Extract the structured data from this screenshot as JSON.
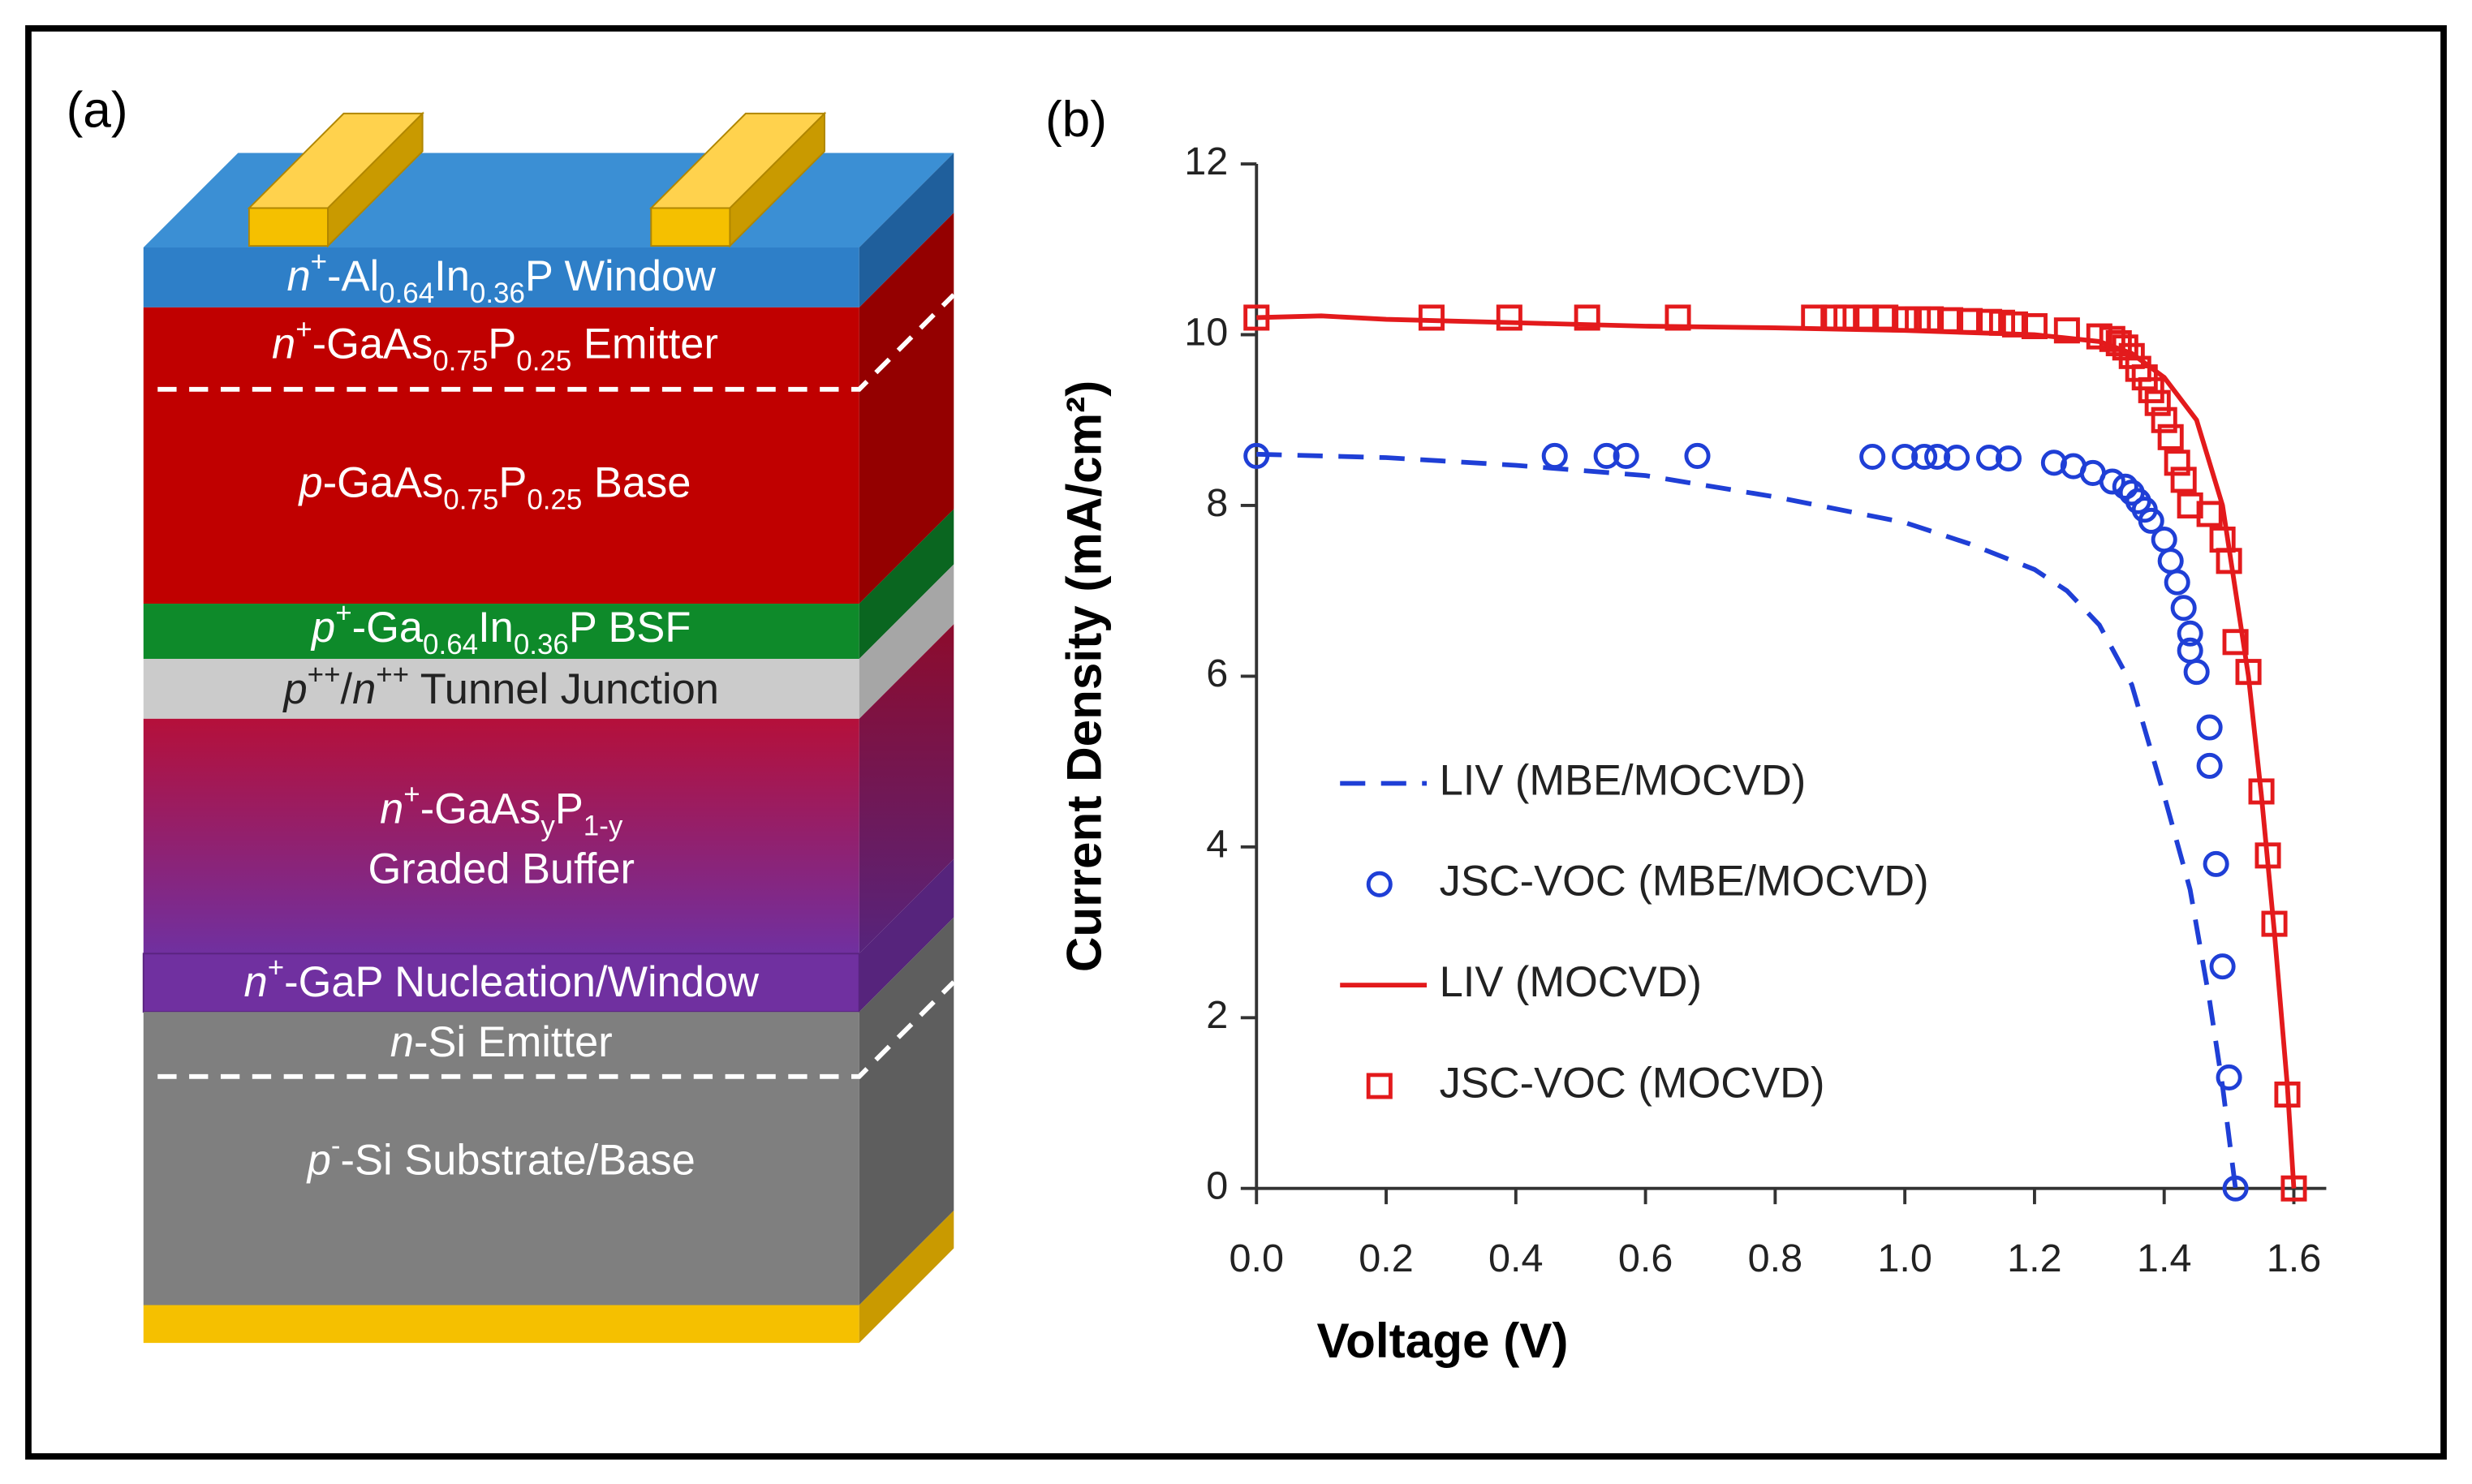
{
  "diagram": {
    "panel_label": "(a)",
    "layers": [
      {
        "lines": [
          [
            {
              "italic": "n"
            },
            {
              "sup": "+"
            },
            {
              "text": "-Al"
            },
            {
              "sub": "0.64"
            },
            {
              "text": "In"
            },
            {
              "sub": "0.36"
            },
            {
              "text": "P Window"
            }
          ]
        ]
      },
      {
        "lines": [
          [
            {
              "italic": "n"
            },
            {
              "sup": "+"
            },
            {
              "text": "-GaAs"
            },
            {
              "sub": "0.75"
            },
            {
              "text": "P"
            },
            {
              "sub": "0.25"
            },
            {
              "text": " Emitter"
            }
          ]
        ]
      },
      {
        "lines": [
          [
            {
              "italic": "p"
            },
            {
              "text": "-GaAs"
            },
            {
              "sub": "0.75"
            },
            {
              "text": "P"
            },
            {
              "sub": "0.25"
            },
            {
              "text": " Base"
            }
          ]
        ]
      },
      {
        "lines": [
          [
            {
              "italic": "p"
            },
            {
              "sup": "+"
            },
            {
              "text": "-Ga"
            },
            {
              "sub": "0.64"
            },
            {
              "text": "In"
            },
            {
              "sub": "0.36"
            },
            {
              "text": "P BSF"
            }
          ]
        ]
      },
      {
        "lines": [
          [
            {
              "italic": "p"
            },
            {
              "sup": "++"
            },
            {
              "text": "/"
            },
            {
              "italic": "n"
            },
            {
              "sup": "++"
            },
            {
              "text": " Tunnel Junction"
            }
          ]
        ]
      },
      {
        "lines": [
          [
            {
              "italic": "n"
            },
            {
              "sup": "+"
            },
            {
              "text": "-GaAs"
            },
            {
              "sub": "y"
            },
            {
              "text": "P"
            },
            {
              "sub": "1-y"
            }
          ],
          [
            {
              "text": "Graded Buffer"
            }
          ]
        ]
      },
      {
        "lines": [
          [
            {
              "italic": "n"
            },
            {
              "sup": "+"
            },
            {
              "text": "-GaP Nucleation/Window"
            }
          ]
        ]
      },
      {
        "lines": [
          [
            {
              "italic": "n"
            },
            {
              "text": "-Si Emitter"
            }
          ]
        ]
      },
      {
        "lines": [
          [
            {
              "italic": "p"
            },
            {
              "sup": "-"
            },
            {
              "text": "-Si Substrate/Base"
            }
          ]
        ]
      }
    ]
  },
  "chart_data": {
    "type": "line",
    "panel_label": "(b)",
    "x_label": "Voltage (V)",
    "y_label": "Current Density (mA/cm²)",
    "xlim": [
      0,
      1.65
    ],
    "ylim": [
      0,
      12
    ],
    "xticks": [
      {
        "value": 0,
        "label": "0.0"
      },
      0.2,
      0.4,
      0.6,
      0.8,
      {
        "value": 1,
        "label": "1.0"
      },
      1.2,
      1.4,
      1.6
    ],
    "yticks": [
      0,
      2,
      4,
      6,
      8,
      10,
      12
    ],
    "series": [
      {
        "name": "LIV (MBE/MOCVD)",
        "color": "#1f3fd6",
        "mode": "dashed",
        "x": [
          0,
          0.2,
          0.4,
          0.6,
          0.8,
          1.0,
          1.1,
          1.2,
          1.25,
          1.3,
          1.35,
          1.4,
          1.44,
          1.47,
          1.49,
          1.51
        ],
        "values": [
          8.6,
          8.56,
          8.47,
          8.35,
          8.1,
          7.8,
          7.55,
          7.25,
          7.0,
          6.6,
          5.9,
          4.6,
          3.5,
          2.2,
          1.2,
          0
        ]
      },
      {
        "name": "JSC-VOC (MBE/MOCVD)",
        "color": "#1f3fd6",
        "mode": "circle",
        "x": [
          0,
          0.46,
          0.54,
          0.57,
          0.68,
          0.95,
          1.0,
          1.03,
          1.05,
          1.08,
          1.13,
          1.16,
          1.23,
          1.26,
          1.29,
          1.32,
          1.34,
          1.35,
          1.36,
          1.37,
          1.38,
          1.4,
          1.41,
          1.42,
          1.43,
          1.44,
          1.44,
          1.45,
          1.47,
          1.47,
          1.48,
          1.49,
          1.5,
          1.51
        ],
        "values": [
          8.58,
          8.58,
          8.58,
          8.58,
          8.58,
          8.57,
          8.57,
          8.57,
          8.57,
          8.56,
          8.56,
          8.55,
          8.5,
          8.46,
          8.38,
          8.28,
          8.22,
          8.15,
          8.05,
          7.95,
          7.82,
          7.6,
          7.35,
          7.1,
          6.8,
          6.5,
          6.3,
          6.05,
          5.4,
          4.95,
          3.8,
          2.6,
          1.3,
          0
        ]
      },
      {
        "name": "LIV (MOCVD)",
        "color": "#e31a1c",
        "mode": "solid",
        "x": [
          0,
          0.1,
          0.2,
          0.4,
          0.6,
          0.8,
          1.0,
          1.2,
          1.3,
          1.35,
          1.4,
          1.45,
          1.49,
          1.51,
          1.53,
          1.55,
          1.57,
          1.59,
          1.6
        ],
        "values": [
          10.2,
          10.22,
          10.18,
          10.14,
          10.1,
          10.08,
          10.05,
          10.0,
          9.92,
          9.78,
          9.5,
          9.0,
          8.0,
          7.0,
          6.0,
          4.6,
          3.0,
          1.2,
          0
        ]
      },
      {
        "name": "JSC-VOC (MOCVD)",
        "color": "#e31a1c",
        "mode": "square",
        "x": [
          0,
          0.27,
          0.39,
          0.51,
          0.65,
          0.86,
          0.89,
          0.91,
          0.94,
          0.97,
          1.0,
          1.02,
          1.04,
          1.07,
          1.1,
          1.13,
          1.15,
          1.17,
          1.2,
          1.25,
          1.3,
          1.32,
          1.33,
          1.34,
          1.35,
          1.36,
          1.37,
          1.38,
          1.39,
          1.4,
          1.41,
          1.42,
          1.43,
          1.44,
          1.47,
          1.49,
          1.5,
          1.51,
          1.53,
          1.55,
          1.56,
          1.57,
          1.59,
          1.6
        ],
        "values": [
          10.2,
          10.2,
          10.2,
          10.2,
          10.2,
          10.2,
          10.2,
          10.2,
          10.2,
          10.2,
          10.18,
          10.18,
          10.18,
          10.17,
          10.16,
          10.15,
          10.14,
          10.12,
          10.1,
          10.05,
          9.98,
          9.95,
          9.9,
          9.85,
          9.75,
          9.6,
          9.5,
          9.35,
          9.2,
          9.0,
          8.8,
          8.5,
          8.3,
          8.0,
          7.9,
          7.6,
          7.35,
          6.4,
          6.05,
          4.65,
          3.9,
          3.1,
          1.1,
          0
        ]
      }
    ]
  }
}
